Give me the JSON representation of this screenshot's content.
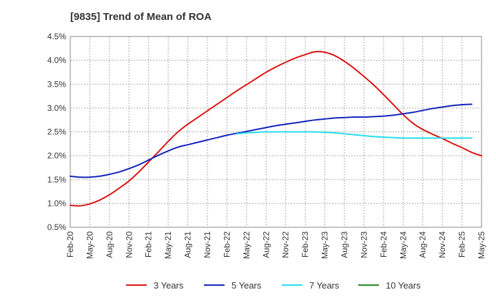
{
  "chart_data": {
    "type": "line",
    "title": "[9835]  Trend of Mean of ROA",
    "xlabel": "",
    "ylabel": "",
    "ylim": [
      0.5,
      4.5
    ],
    "yticks": [
      0.5,
      1.0,
      1.5,
      2.0,
      2.5,
      3.0,
      3.5,
      4.0,
      4.5
    ],
    "ytick_labels": [
      "0.5%",
      "1.0%",
      "1.5%",
      "2.0%",
      "2.5%",
      "3.0%",
      "3.5%",
      "4.0%",
      "4.5%"
    ],
    "x_tick_labels": [
      "Feb-20",
      "May-20",
      "Aug-20",
      "Nov-20",
      "Feb-21",
      "May-21",
      "Aug-21",
      "Nov-21",
      "Feb-22",
      "May-22",
      "Aug-22",
      "Nov-22",
      "Feb-23",
      "May-23",
      "Aug-23",
      "Nov-23",
      "Feb-24",
      "May-24",
      "Aug-24",
      "Nov-24",
      "Feb-25",
      "May-25"
    ],
    "grid": true,
    "legend_position": "bottom",
    "series": [
      {
        "name": "3 Years",
        "color": "#dd1111",
        "values": [
          0.96,
          0.95,
          0.99,
          1.07,
          1.18,
          1.32,
          1.47,
          1.66,
          1.87,
          2.08,
          2.3,
          2.5,
          2.66,
          2.8,
          2.94,
          3.08,
          3.22,
          3.36,
          3.49,
          3.62,
          3.75,
          3.86,
          3.96,
          4.05,
          4.12,
          4.18,
          4.17,
          4.1,
          3.98,
          3.83,
          3.66,
          3.48,
          3.28,
          3.07,
          2.86,
          2.68,
          2.55,
          2.45,
          2.36,
          2.26,
          2.17,
          2.07,
          2.0
        ]
      },
      {
        "name": "5 Years",
        "color": "#1122bb",
        "values": [
          1.57,
          1.55,
          1.55,
          1.57,
          1.61,
          1.66,
          1.73,
          1.81,
          1.91,
          2.01,
          2.1,
          2.18,
          2.23,
          2.28,
          2.33,
          2.38,
          2.43,
          2.47,
          2.51,
          2.55,
          2.59,
          2.63,
          2.66,
          2.69,
          2.72,
          2.75,
          2.77,
          2.79,
          2.8,
          2.81,
          2.81,
          2.82,
          2.83,
          2.85,
          2.88,
          2.91,
          2.95,
          2.99,
          3.02,
          3.05,
          3.07,
          3.08
        ]
      },
      {
        "name": "7 Years",
        "color": "#22ddee",
        "start_index": 17,
        "values": [
          2.46,
          2.48,
          2.49,
          2.5,
          2.5,
          2.5,
          2.5,
          2.5,
          2.5,
          2.49,
          2.48,
          2.46,
          2.44,
          2.42,
          2.4,
          2.39,
          2.38,
          2.37,
          2.37,
          2.37,
          2.37,
          2.37,
          2.37,
          2.37,
          2.37
        ]
      },
      {
        "name": "10 Years",
        "color": "#228822",
        "values": []
      }
    ]
  }
}
